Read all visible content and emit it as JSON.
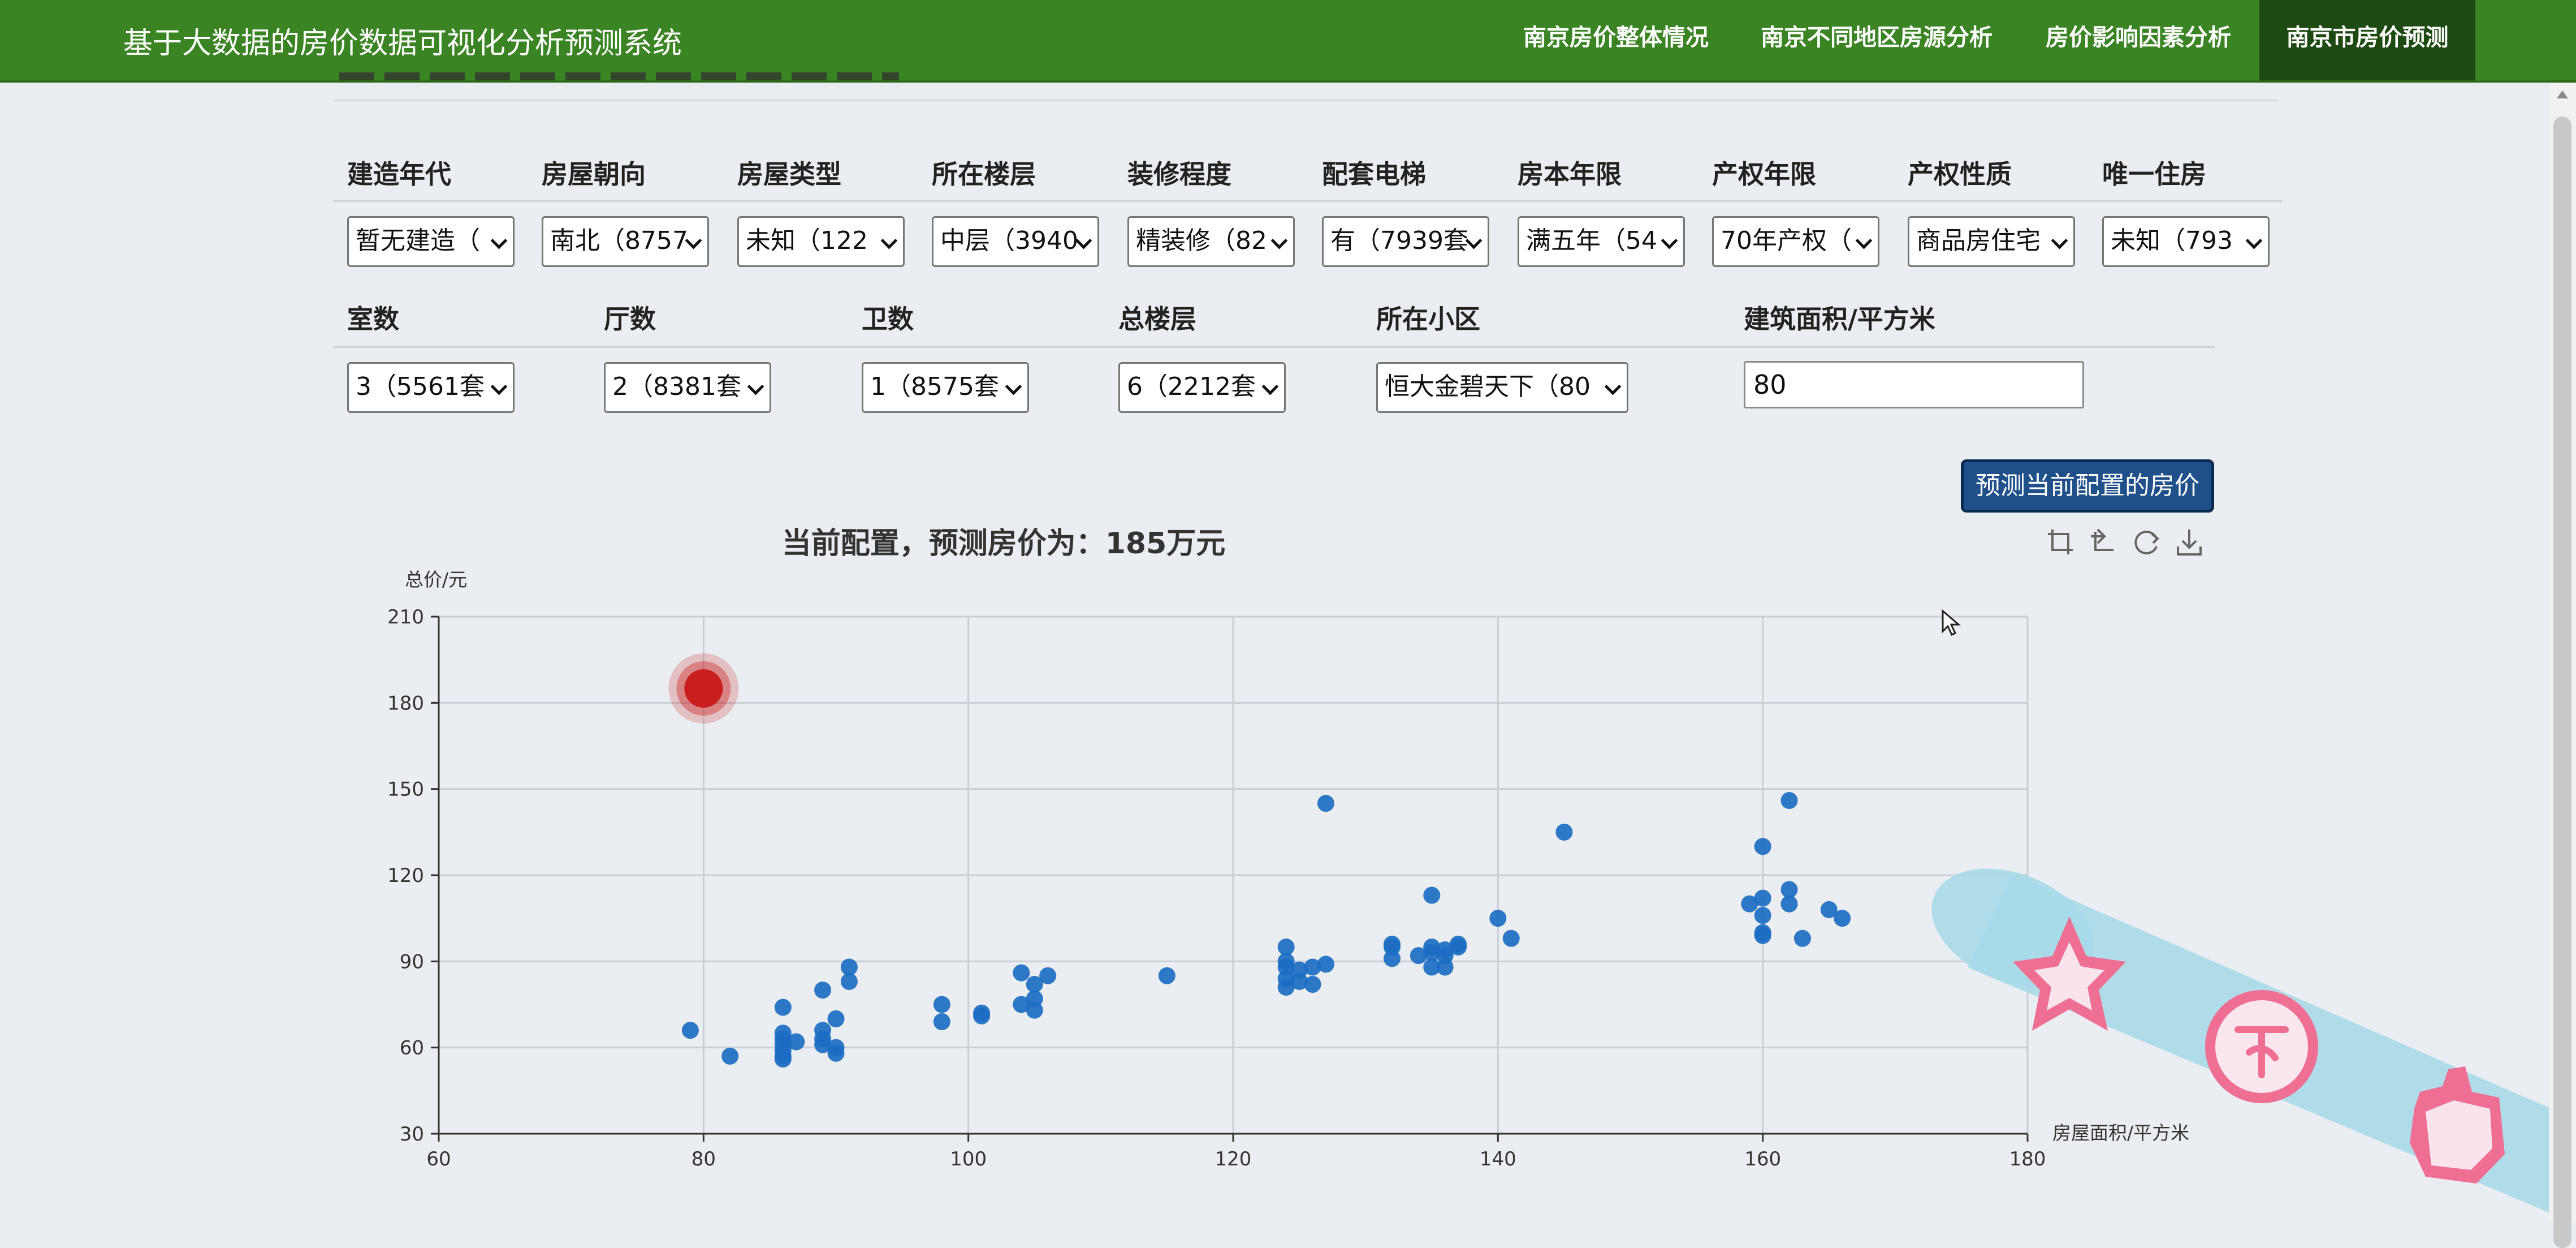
{
  "app": {
    "title": "基于大数据的房价数据可视化分析预测系统",
    "nav": [
      {
        "label": "南京房价整体情况",
        "active": false
      },
      {
        "label": "南京不同地区房源分析",
        "active": false
      },
      {
        "label": "房价影响因素分析",
        "active": false
      },
      {
        "label": "南京市房价预测",
        "active": true
      }
    ]
  },
  "form": {
    "row1": [
      {
        "label": "建造年代",
        "value": "暂无建造（"
      },
      {
        "label": "房屋朝向",
        "value": "南北（8757"
      },
      {
        "label": "房屋类型",
        "value": "未知（122"
      },
      {
        "label": "所在楼层",
        "value": "中层（3940"
      },
      {
        "label": "装修程度",
        "value": "精装修（82"
      },
      {
        "label": "配套电梯",
        "value": "有（7939套"
      },
      {
        "label": "房本年限",
        "value": "满五年（54"
      },
      {
        "label": "产权年限",
        "value": "70年产权（"
      },
      {
        "label": "产权性质",
        "value": "商品房住宅"
      },
      {
        "label": "唯一住房",
        "value": "未知（793"
      }
    ],
    "row2": [
      {
        "label": "室数",
        "value": "3（5561套"
      },
      {
        "label": "厅数",
        "value": "2（8381套"
      },
      {
        "label": "卫数",
        "value": "1（8575套"
      },
      {
        "label": "总楼层",
        "value": "6（2212套"
      },
      {
        "label": "所在小区",
        "value": "恒大金碧天下（80"
      }
    ],
    "area": {
      "label": "建筑面积/平方米",
      "value": "80"
    },
    "predict_button": "预测当前配置的房价"
  },
  "toolbox": [
    "zoom-icon",
    "zoom-reset-icon",
    "restore-icon",
    "download-icon"
  ],
  "chart_data": {
    "type": "scatter",
    "title": "当前配置，预测房价为：185万元",
    "ylabel": "总价/元",
    "xlabel": "房屋面积/平方米",
    "xlim": [
      60,
      180
    ],
    "ylim": [
      30,
      210
    ],
    "x_ticks": [
      60,
      80,
      100,
      120,
      140,
      160,
      180
    ],
    "y_ticks": [
      30,
      60,
      90,
      120,
      150,
      180,
      210
    ],
    "grid": true,
    "point_color": "#1c6dc3",
    "highlight_color": "#c81e1e",
    "highlight": {
      "x": 80,
      "y": 185
    },
    "points": [
      [
        79,
        66
      ],
      [
        82,
        57
      ],
      [
        86,
        74
      ],
      [
        86,
        65
      ],
      [
        86,
        63
      ],
      [
        86,
        61
      ],
      [
        86,
        59
      ],
      [
        86,
        57
      ],
      [
        86,
        56
      ],
      [
        87,
        62
      ],
      [
        89,
        80
      ],
      [
        89,
        66
      ],
      [
        89,
        63
      ],
      [
        89,
        61
      ],
      [
        90,
        70
      ],
      [
        90,
        60
      ],
      [
        90,
        58
      ],
      [
        91,
        88
      ],
      [
        91,
        83
      ],
      [
        98,
        69
      ],
      [
        98,
        75
      ],
      [
        101,
        72
      ],
      [
        101,
        71
      ],
      [
        104,
        86
      ],
      [
        104,
        75
      ],
      [
        105,
        77
      ],
      [
        105,
        73
      ],
      [
        105,
        82
      ],
      [
        106,
        85
      ],
      [
        115,
        85
      ],
      [
        124,
        95
      ],
      [
        124,
        90
      ],
      [
        124,
        88
      ],
      [
        124,
        84
      ],
      [
        124,
        81
      ],
      [
        125,
        87
      ],
      [
        125,
        83
      ],
      [
        126,
        88
      ],
      [
        126,
        82
      ],
      [
        127,
        145
      ],
      [
        127,
        89
      ],
      [
        132,
        96
      ],
      [
        132,
        95
      ],
      [
        132,
        91
      ],
      [
        134,
        92
      ],
      [
        135,
        113
      ],
      [
        135,
        95
      ],
      [
        135,
        93
      ],
      [
        135,
        88
      ],
      [
        136,
        88
      ],
      [
        136,
        92
      ],
      [
        136,
        94
      ],
      [
        137,
        96
      ],
      [
        137,
        95
      ],
      [
        140,
        105
      ],
      [
        141,
        98
      ],
      [
        145,
        135
      ],
      [
        159,
        110
      ],
      [
        160,
        130
      ],
      [
        160,
        112
      ],
      [
        160,
        106
      ],
      [
        160,
        100
      ],
      [
        160,
        99
      ],
      [
        162,
        146
      ],
      [
        162,
        115
      ],
      [
        162,
        110
      ],
      [
        163,
        98
      ],
      [
        165,
        108
      ],
      [
        166,
        105
      ]
    ]
  }
}
